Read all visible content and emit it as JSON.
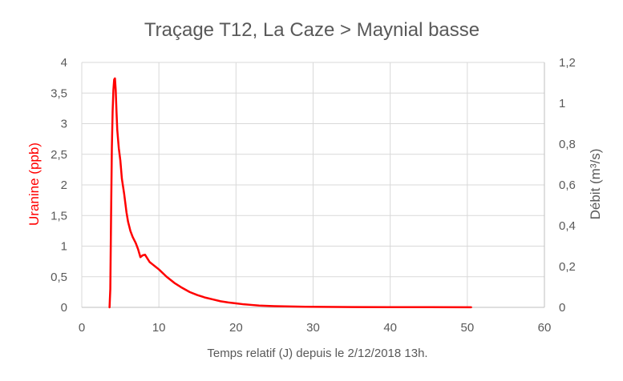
{
  "chart_data": {
    "type": "line",
    "title": "Traçage T12, La Caze > Maynial basse",
    "xlabel": "Temps relatif (J) depuis le 2/12/2018 13h.",
    "ylabel": "Uranine (ppb)",
    "y2label": "Débit (m³/s)",
    "xlim": [
      0,
      60
    ],
    "ylim": [
      0,
      4
    ],
    "y2lim": [
      0,
      1.2
    ],
    "x_ticks": [
      "0",
      "10",
      "20",
      "30",
      "40",
      "50",
      "60"
    ],
    "y_ticks": [
      "0",
      "0,5",
      "1",
      "1,5",
      "2",
      "2,5",
      "3",
      "3,5",
      "4"
    ],
    "y2_ticks": [
      "0",
      "0,2",
      "0,4",
      "0,6",
      "0,8",
      "1",
      "1,2"
    ],
    "grid": true,
    "colors": {
      "uranine": "#ff0000",
      "text": "#595959",
      "grid": "#d9d9d9"
    },
    "series": [
      {
        "axis": "left",
        "color": "#ff0000",
        "x": [
          3.6,
          3.7,
          3.8,
          3.9,
          4.0,
          4.1,
          4.2,
          4.3,
          4.4,
          4.5,
          4.6,
          4.8,
          5.0,
          5.2,
          5.5,
          5.8,
          6.0,
          6.3,
          6.6,
          7.0,
          7.3,
          7.6,
          7.9,
          8.2,
          8.5,
          8.8,
          9.2,
          9.6,
          10.0,
          11,
          12,
          13,
          14,
          15,
          16,
          17,
          18,
          19,
          20,
          21,
          22,
          23,
          24,
          25,
          27,
          29,
          31,
          35,
          40,
          45,
          50.5
        ],
        "y": [
          0.0,
          0.3,
          1.5,
          2.6,
          3.2,
          3.55,
          3.72,
          3.74,
          3.55,
          3.2,
          2.9,
          2.6,
          2.4,
          2.1,
          1.85,
          1.55,
          1.4,
          1.25,
          1.15,
          1.05,
          0.95,
          0.82,
          0.85,
          0.86,
          0.8,
          0.74,
          0.7,
          0.66,
          0.62,
          0.5,
          0.4,
          0.32,
          0.25,
          0.2,
          0.16,
          0.13,
          0.1,
          0.08,
          0.065,
          0.05,
          0.04,
          0.03,
          0.025,
          0.02,
          0.015,
          0.01,
          0.008,
          0.005,
          0.004,
          0.003,
          0.002
        ]
      }
    ]
  }
}
